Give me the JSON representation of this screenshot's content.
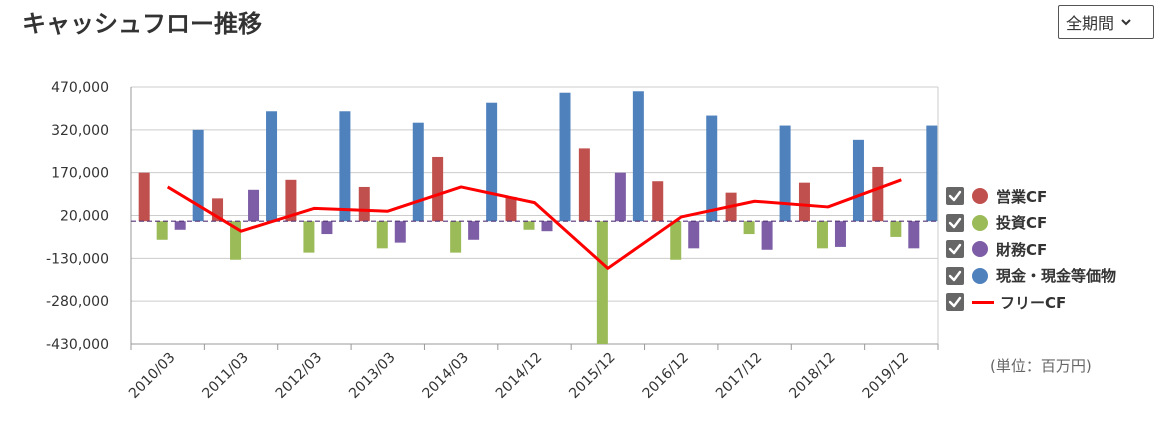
{
  "title": "キャッシュフロー推移",
  "period_select": {
    "value": "全期間"
  },
  "unit_label": "(単位：百万円)",
  "colors": {
    "operating": "#c0504d",
    "investing": "#9bbb59",
    "financing": "#7d5da6",
    "cash": "#4f81bd",
    "free": "#ff0000"
  },
  "legend": [
    {
      "label": "営業CF",
      "key": "operating",
      "checked": true,
      "marker": "dot"
    },
    {
      "label": "投資CF",
      "key": "investing",
      "checked": true,
      "marker": "dot"
    },
    {
      "label": "財務CF",
      "key": "financing",
      "checked": true,
      "marker": "dot"
    },
    {
      "label": "現金・現金等価物",
      "key": "cash",
      "checked": true,
      "marker": "dot"
    },
    {
      "label": "フリーCF",
      "key": "free",
      "checked": true,
      "marker": "line"
    }
  ],
  "chart_data": {
    "type": "bar",
    "categories": [
      "2010/03",
      "2011/03",
      "2012/03",
      "2013/03",
      "2014/03",
      "2014/12",
      "2015/12",
      "2016/12",
      "2017/12",
      "2018/12",
      "2019/12"
    ],
    "yticks": [
      470000,
      320000,
      170000,
      20000,
      -130000,
      -280000,
      -430000
    ],
    "ytick_labels": [
      "470,000",
      "320,000",
      "170,000",
      "20,000",
      "-130,000",
      "-280,000",
      "-430,000"
    ],
    "ylim": [
      -430000,
      470000
    ],
    "series": [
      {
        "name": "営業CF",
        "key": "operating",
        "values": [
          170000,
          80000,
          145000,
          120000,
          225000,
          85000,
          255000,
          140000,
          100000,
          135000,
          190000
        ]
      },
      {
        "name": "投資CF",
        "key": "investing",
        "values": [
          -65000,
          -135000,
          -110000,
          -95000,
          -110000,
          -30000,
          -430000,
          -135000,
          -45000,
          -95000,
          -55000
        ]
      },
      {
        "name": "財務CF",
        "key": "financing",
        "values": [
          -30000,
          110000,
          -45000,
          -75000,
          -65000,
          -35000,
          170000,
          -95000,
          -100000,
          -90000,
          -95000
        ]
      },
      {
        "name": "現金・現金等価物",
        "key": "cash",
        "values": [
          320000,
          385000,
          385000,
          345000,
          415000,
          450000,
          455000,
          370000,
          335000,
          285000,
          335000
        ]
      }
    ],
    "line_series": {
      "name": "フリーCF",
      "key": "free",
      "values": [
        120000,
        -35000,
        45000,
        35000,
        120000,
        65000,
        -165000,
        15000,
        70000,
        50000,
        145000
      ]
    },
    "grid": true
  }
}
